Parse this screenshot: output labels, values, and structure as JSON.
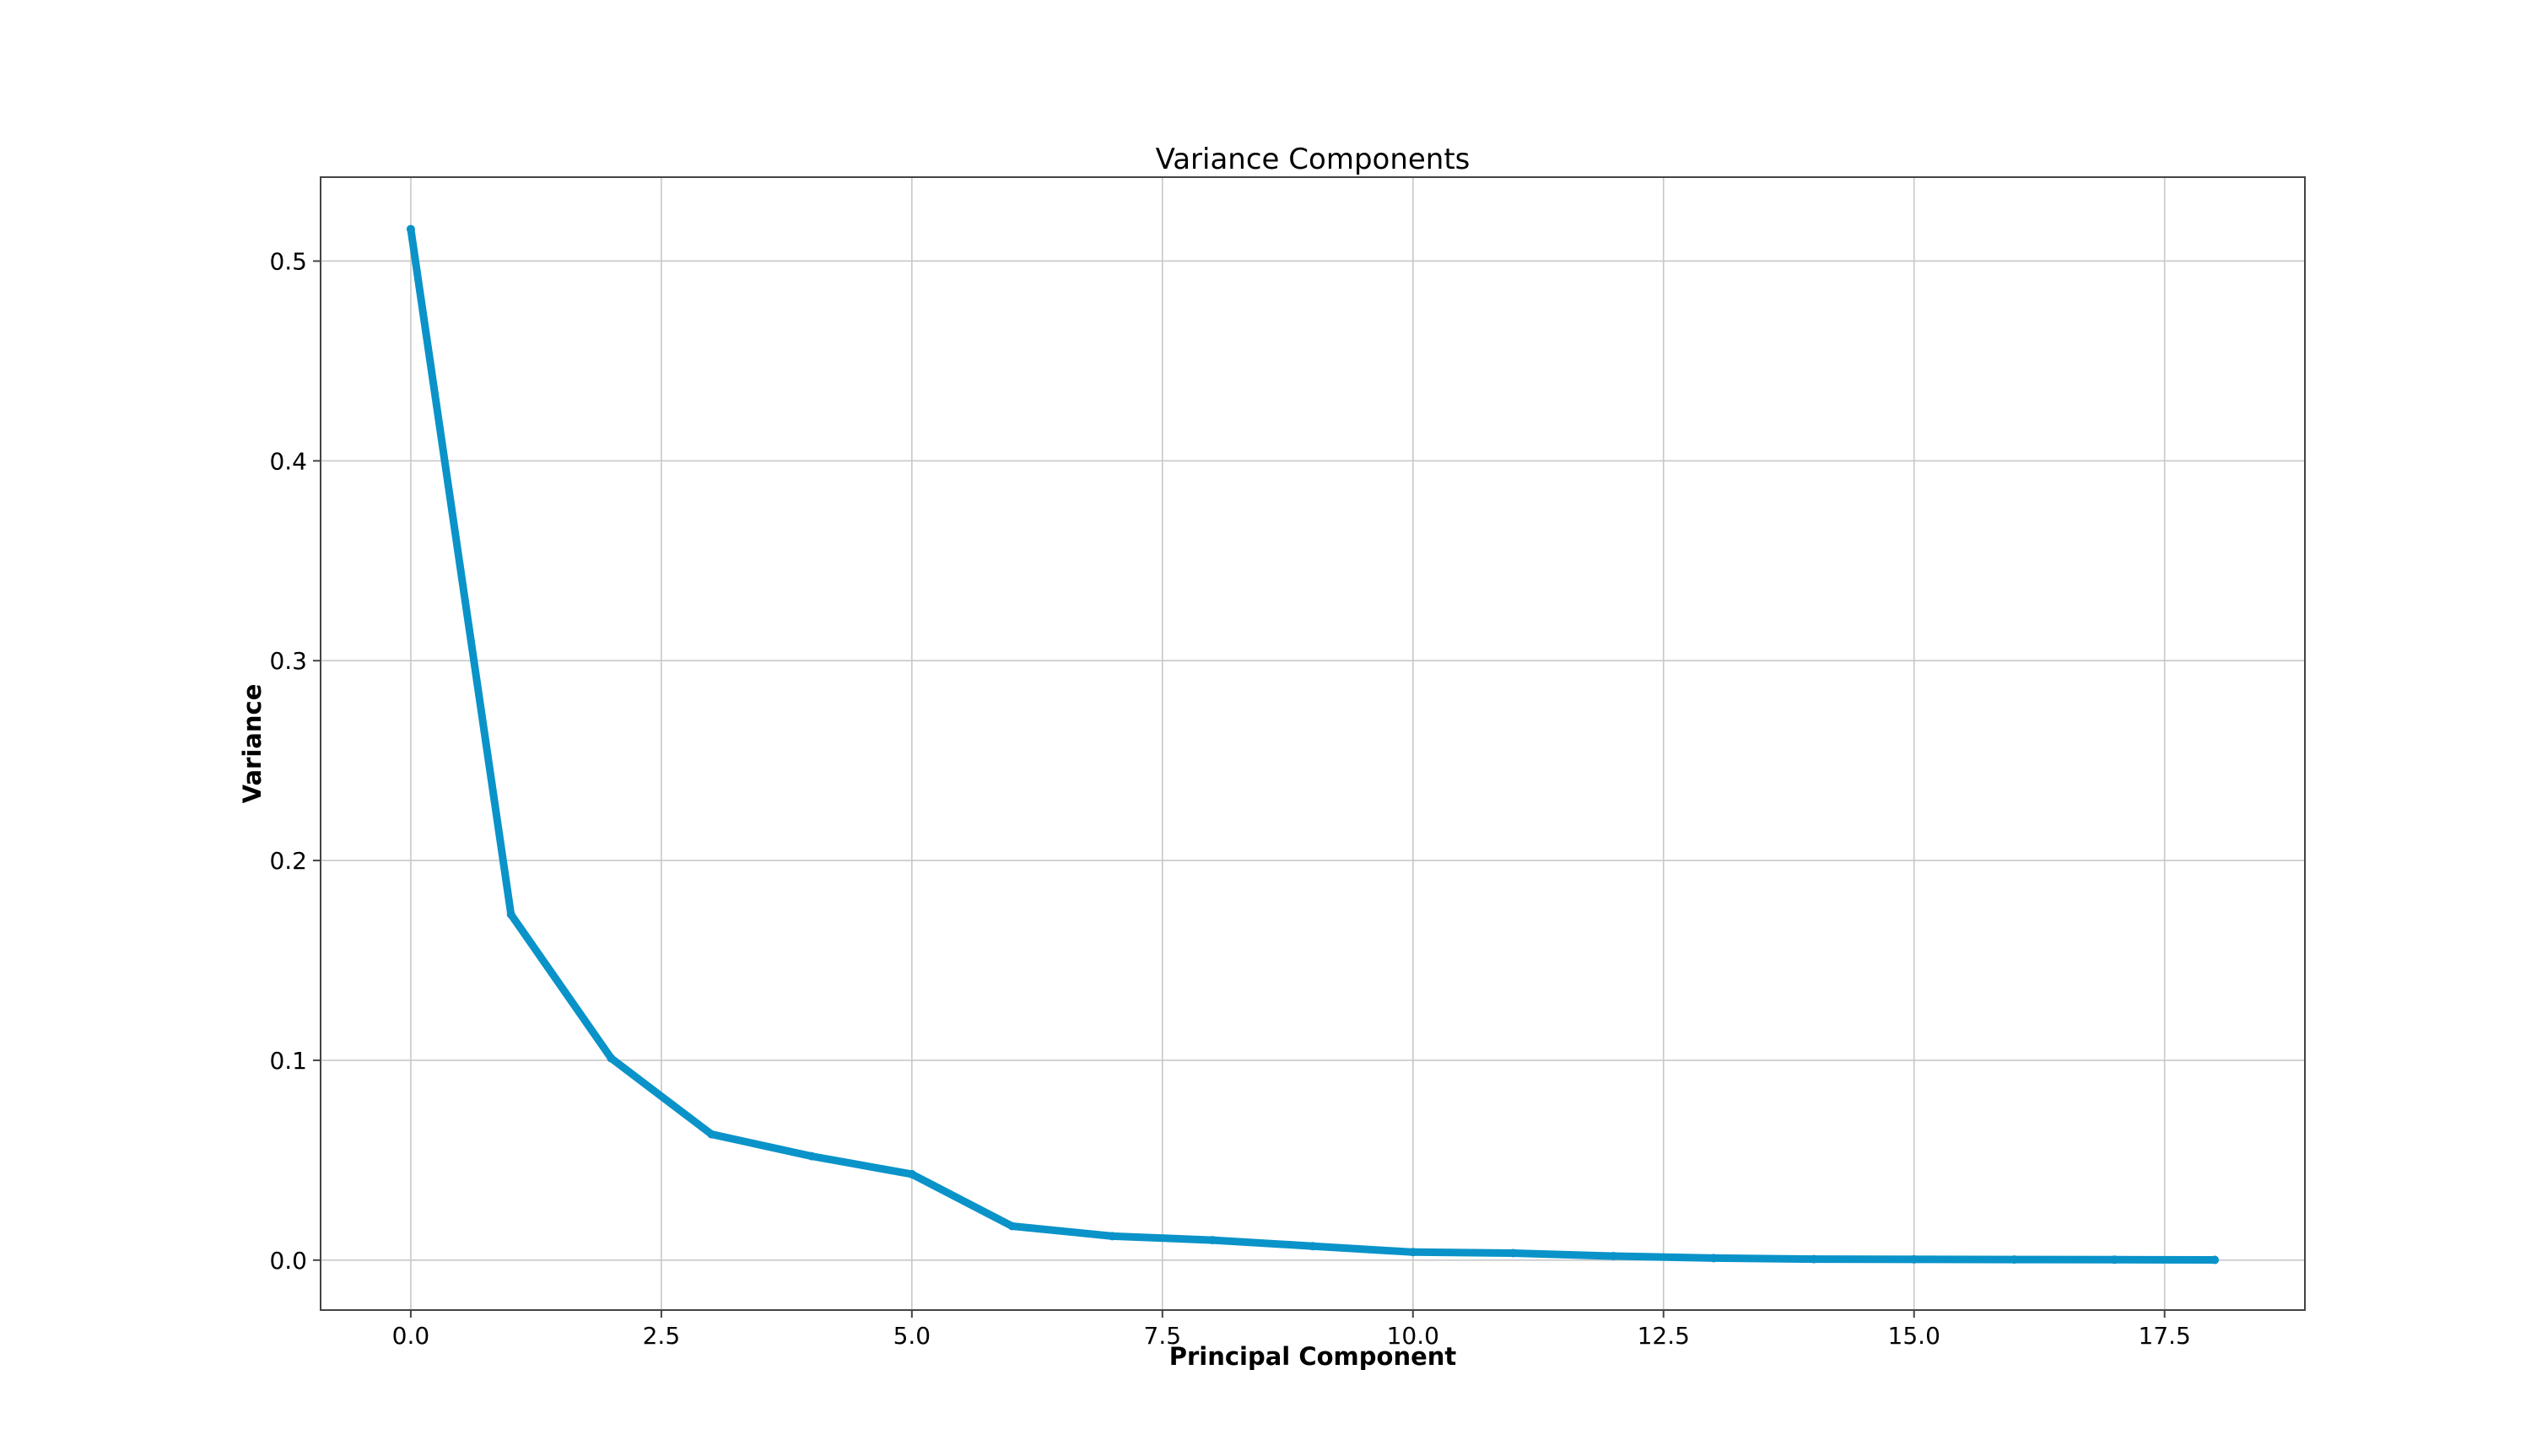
{
  "chart_data": {
    "type": "line",
    "title": "Variance Components",
    "xlabel": "Principal Component",
    "ylabel": "Variance",
    "x": [
      0,
      1,
      2,
      3,
      4,
      5,
      6,
      7,
      8,
      9,
      10,
      11,
      12,
      13,
      14,
      15,
      16,
      17,
      18
    ],
    "series": [
      {
        "values": [
          0.516,
          0.173,
          0.101,
          0.063,
          0.052,
          0.043,
          0.017,
          0.012,
          0.01,
          0.007,
          0.004,
          0.0035,
          0.002,
          0.001,
          0.0005,
          0.0004,
          0.0003,
          0.0002,
          0.0001
        ],
        "color": "#0a93c9"
      }
    ],
    "xticks": [
      "0.0",
      "2.5",
      "5.0",
      "7.5",
      "10.0",
      "12.5",
      "15.0",
      "17.5"
    ],
    "yticks": [
      "0.0",
      "0.1",
      "0.2",
      "0.3",
      "0.4",
      "0.5"
    ],
    "xlim": [
      -0.9,
      18.9
    ],
    "ylim": [
      -0.025,
      0.542
    ],
    "grid": true,
    "colors": {
      "line": "#0a93c9",
      "grid": "#c8c8c8",
      "frame": "#444444",
      "text": "#000000"
    }
  }
}
